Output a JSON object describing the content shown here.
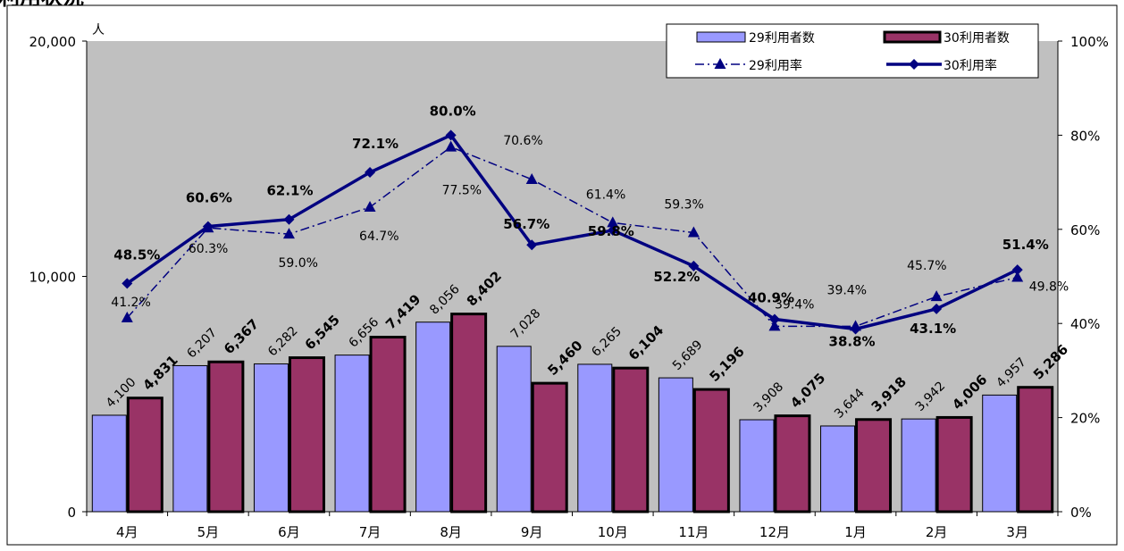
{
  "page": {
    "title_fragment": "利用状況"
  },
  "chart_data": {
    "type": "bar",
    "categories": [
      "4月",
      "5月",
      "6月",
      "7月",
      "8月",
      "9月",
      "10月",
      "11月",
      "12月",
      "1月",
      "2月",
      "3月"
    ],
    "series": [
      {
        "name": "29利用者数",
        "kind": "bar",
        "axis": "left",
        "color": "#9999ff",
        "values": [
          4100,
          6207,
          6282,
          6656,
          8056,
          7028,
          6265,
          5689,
          3908,
          3644,
          3942,
          4957
        ],
        "labels": [
          "4,100",
          "6,207",
          "6,282",
          "6,656",
          "8,056",
          "7,028",
          "6,265",
          "5,689",
          "3,908",
          "3,644",
          "3,942",
          "4,957"
        ]
      },
      {
        "name": "30利用者数",
        "kind": "bar",
        "axis": "left",
        "color": "#993366",
        "values": [
          4831,
          6367,
          6545,
          7419,
          8402,
          5460,
          6104,
          5196,
          4075,
          3918,
          4006,
          5286
        ],
        "labels": [
          "4,831",
          "6,367",
          "6,545",
          "7,419",
          "8,402",
          "5,460",
          "6,104",
          "5,196",
          "4,075",
          "3,918",
          "4,006",
          "5,286"
        ]
      },
      {
        "name": "29利用率",
        "kind": "line",
        "style": "dash-dot",
        "marker": "triangle",
        "axis": "right",
        "color": "#000080",
        "values": [
          41.2,
          60.3,
          59.0,
          64.7,
          77.5,
          70.6,
          61.4,
          59.3,
          39.4,
          39.4,
          45.7,
          49.8
        ],
        "labels": [
          "41.2%",
          "60.3%",
          "59.0%",
          "64.7%",
          "77.5%",
          "70.6%",
          "61.4%",
          "59.3%",
          "39.4%",
          "39.4%",
          "45.7%",
          "49.8%"
        ]
      },
      {
        "name": "30利用率",
        "kind": "line",
        "style": "solid",
        "marker": "diamond",
        "axis": "right",
        "color": "#000080",
        "values": [
          48.5,
          60.6,
          62.1,
          72.1,
          80.0,
          56.7,
          59.8,
          52.2,
          40.9,
          38.8,
          43.1,
          51.4
        ],
        "labels": [
          "48.5%",
          "60.6%",
          "62.1%",
          "72.1%",
          "80.0%",
          "56.7%",
          "59.8%",
          "52.2%",
          "40.9%",
          "38.8%",
          "43.1%",
          "51.4%"
        ]
      }
    ],
    "y_left": {
      "ylim": [
        0,
        20000
      ],
      "ticks": [
        "0",
        "10,000",
        "20,000"
      ],
      "unit": "人"
    },
    "y_right": {
      "ylim": [
        0,
        100
      ],
      "ticks": [
        "0%",
        "20%",
        "40%",
        "60%",
        "80%",
        "100%"
      ]
    },
    "plot_background": "#c0c0c0",
    "legend_placement": "top-right"
  }
}
